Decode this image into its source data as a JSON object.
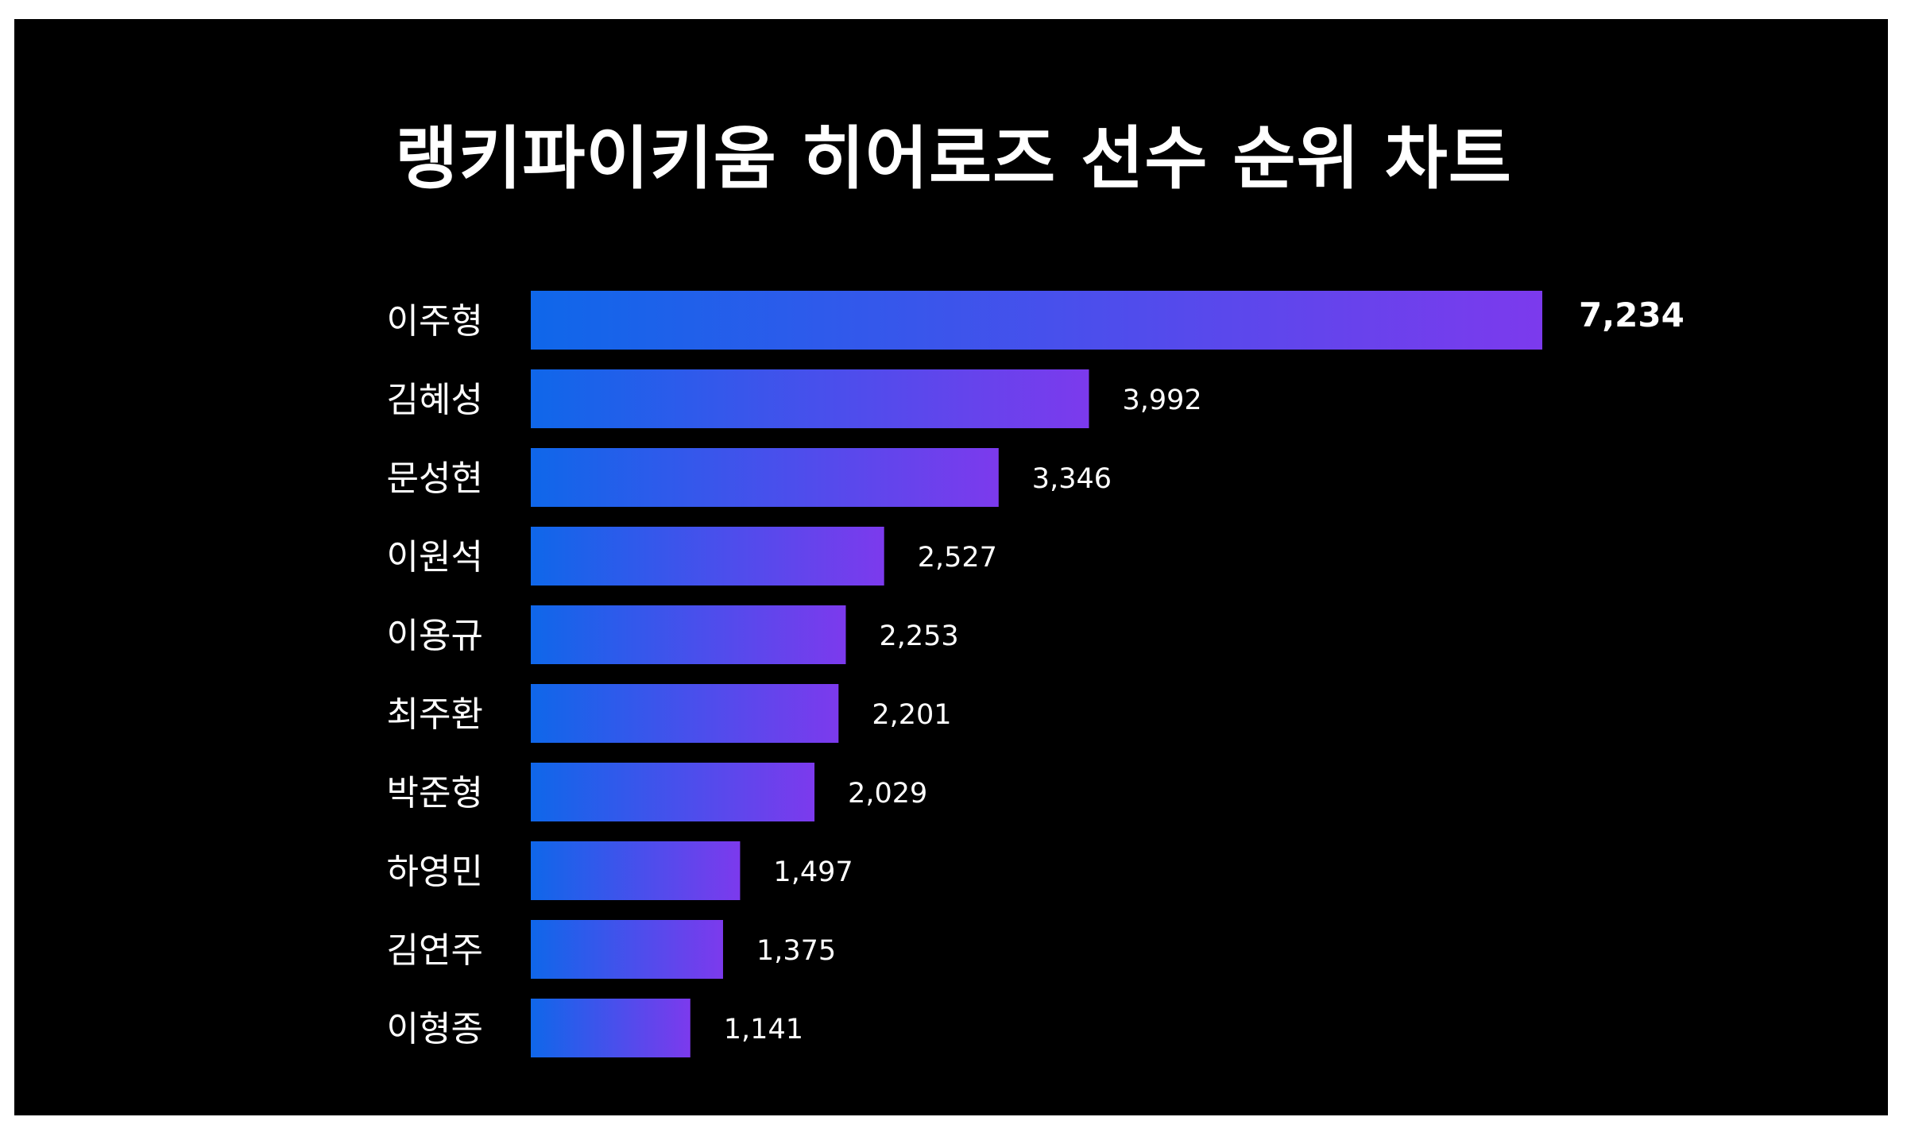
{
  "chart_data": {
    "type": "bar",
    "orientation": "horizontal",
    "title": "랭키파이키움 히어로즈 선수 순위 차트",
    "categories": [
      "이주형",
      "김혜성",
      "문성현",
      "이원석",
      "이용규",
      "최주환",
      "박준형",
      "하영민",
      "김연주",
      "이형종"
    ],
    "values": [
      7234,
      3992,
      3346,
      2527,
      2253,
      2201,
      2029,
      1497,
      1375,
      1141
    ],
    "value_labels": [
      "7,234",
      "3,992",
      "3,346",
      "2,527",
      "2,253",
      "2,201",
      "2,029",
      "1,497",
      "1,375",
      "1,141"
    ],
    "xlim": [
      0,
      7234
    ],
    "grid": false,
    "background": "#000000",
    "bar_gradient": [
      "#0f67ea",
      "#7c3aed"
    ],
    "text_color": "#ffffff"
  }
}
